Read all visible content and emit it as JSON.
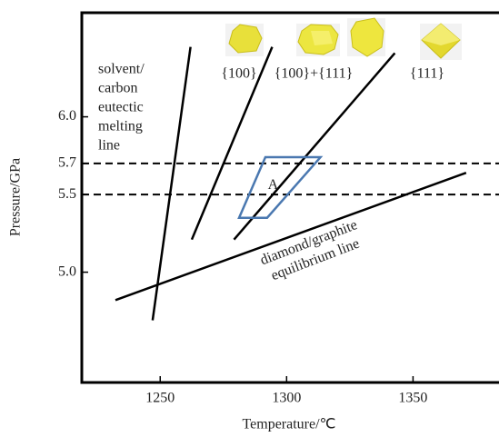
{
  "chart_data": {
    "type": "line",
    "x_label": "Temperature/℃",
    "y_label": "Pressure/GPa",
    "xlim": [
      1219,
      1384
    ],
    "ylim": [
      4.29,
      6.67
    ],
    "xticks": [
      1250,
      1300,
      1350
    ],
    "yticks": [
      {
        "value": 6,
        "label": "6.0"
      },
      5.7,
      5.5,
      {
        "value": 5,
        "label": "5.0"
      }
    ],
    "series": [
      {
        "color": "#000000",
        "x": [
          1247,
          1262
        ],
        "values": [
          4.69,
          6.45
        ]
      },
      {
        "color": "#000000",
        "x": [
          1262.5,
          1294.3
        ],
        "values": [
          5.21,
          6.45
        ]
      },
      {
        "color": "#000000",
        "x": [
          1279.2,
          1342.8
        ],
        "values": [
          5.21,
          6.41
        ]
      },
      {
        "color": "#000000",
        "x": [
          1232.3,
          1371
        ],
        "values": [
          4.82,
          5.64
        ]
      }
    ],
    "hlines": [
      5.7,
      5.5
    ],
    "regions": [
      {
        "label": "A",
        "color": "#4a78b0",
        "x": [
          1291.6,
          1313.4,
          1292.3,
          1281.2
        ],
        "y": [
          5.74,
          5.74,
          5.35,
          5.35
        ]
      }
    ],
    "annotations": [
      {
        "text": [
          "solvent/",
          "carbon",
          "eutectic",
          "melting",
          "line"
        ]
      },
      {
        "text": [
          "diamond/graphite",
          "equilibrium line"
        ]
      },
      {
        "text": [
          "{100}"
        ]
      },
      {
        "text": [
          "{100}+{111}"
        ]
      },
      {
        "text": [
          "{111}"
        ]
      }
    ]
  }
}
